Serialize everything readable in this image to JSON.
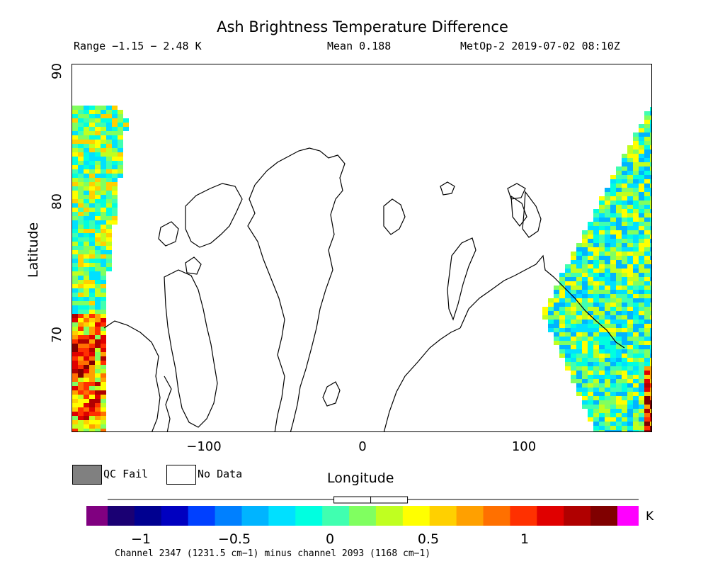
{
  "header": {
    "title": "Ash Brightness Temperature Difference",
    "range": "Range −1.15 − 2.48 K",
    "mean": "Mean 0.188",
    "satellite_time": "MetOp-2 2019-07-02 08:10Z"
  },
  "map": {
    "x_axis_label": "Longitude",
    "y_axis_label": "Latitude",
    "x_ticks": [
      "−100",
      "0",
      "100"
    ],
    "y_ticks": [
      "90",
      "80",
      "70"
    ],
    "x_tick_values": [
      -100,
      0,
      100
    ],
    "y_tick_values": [
      90,
      80,
      70
    ],
    "lon_range": [
      -180,
      180
    ],
    "lat_range": [
      62.2,
      90
    ]
  },
  "legend": {
    "qc_fail_label": "QC Fail",
    "no_data_label": "No Data",
    "qc_fail_color": "#808080",
    "no_data_color": "#ffffff"
  },
  "colorbar": {
    "unit": "K",
    "tick_labels": [
      "−1",
      "−0.5",
      "0",
      "0.5",
      "1"
    ],
    "tick_values": [
      -1,
      -0.5,
      0,
      0.5,
      1
    ],
    "range": [
      -1.3,
      1.5
    ],
    "mean_value": 0.188,
    "underflow_color": "#800080",
    "overflow_color": "#ff00ff",
    "colors": [
      "#1a0073",
      "#000090",
      "#0000c0",
      "#0040ff",
      "#0080ff",
      "#00b4ff",
      "#00e0ff",
      "#00ffe0",
      "#40ffb0",
      "#80ff60",
      "#c0ff20",
      "#ffff00",
      "#ffd000",
      "#ffa000",
      "#ff7000",
      "#ff3000",
      "#e00000",
      "#b00000",
      "#800000"
    ],
    "channel_note": "Channel 2347 (1231.5 cm−1) minus channel 2093 (1168 cm−1)"
  }
}
